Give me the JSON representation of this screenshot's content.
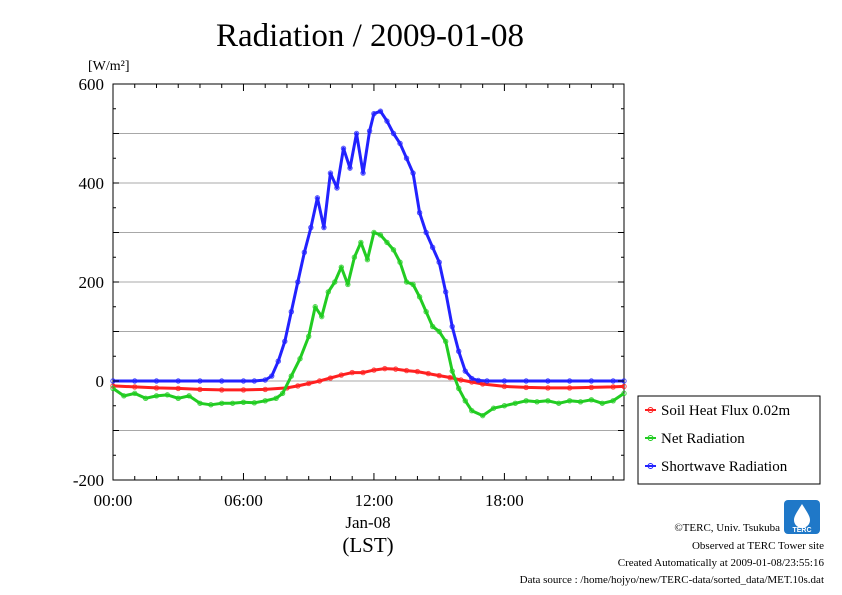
{
  "chart_data": {
    "type": "line",
    "title": "Radiation / 2009-01-08",
    "unit_label": "[W/m²]",
    "xlabel_date": "Jan-08",
    "xlabel_tz": "(LST)",
    "xlim": [
      0,
      23.5
    ],
    "ylim": [
      -200,
      600
    ],
    "yticks": [
      -200,
      0,
      200,
      400,
      600
    ],
    "yticks_labels": [
      "-200",
      "0",
      "200",
      "400",
      "600"
    ],
    "xticks": [
      0,
      6,
      12,
      18
    ],
    "xticks_labels": [
      "00:00",
      "06:00",
      "12:00",
      "18:00"
    ],
    "grid": true,
    "legend_position": "lower-right outside",
    "series": [
      {
        "name": "Soil Heat Flux 0.02m",
        "color": "#ff2020",
        "x": [
          0,
          1,
          2,
          3,
          4,
          5,
          6,
          7,
          8,
          8.5,
          9,
          9.5,
          10,
          10.5,
          11,
          11.5,
          12,
          12.5,
          13,
          13.5,
          14,
          14.5,
          15,
          15.5,
          16,
          16.5,
          17,
          18,
          19,
          20,
          21,
          22,
          23,
          23.5
        ],
        "values": [
          -10,
          -12,
          -14,
          -15,
          -17,
          -18,
          -18,
          -17,
          -14,
          -10,
          -5,
          0,
          6,
          12,
          17,
          17,
          22,
          25,
          24,
          21,
          19,
          15,
          11,
          7,
          2,
          -2,
          -6,
          -11,
          -13,
          -14,
          -14,
          -13,
          -12,
          -11
        ]
      },
      {
        "name": "Net Radiation",
        "color": "#22cc22",
        "x": [
          0,
          0.5,
          1,
          1.5,
          2,
          2.5,
          3,
          3.5,
          4,
          4.5,
          5,
          5.5,
          6,
          6.5,
          7,
          7.5,
          7.8,
          8.2,
          8.6,
          9,
          9.3,
          9.6,
          9.9,
          10.2,
          10.5,
          10.8,
          11.1,
          11.4,
          11.7,
          12,
          12.3,
          12.6,
          12.9,
          13.2,
          13.5,
          13.8,
          14.1,
          14.4,
          14.7,
          15,
          15.3,
          15.6,
          15.9,
          16.2,
          16.5,
          17,
          17.5,
          18,
          18.5,
          19,
          19.5,
          20,
          20.5,
          21,
          21.5,
          22,
          22.5,
          23,
          23.5
        ],
        "values": [
          -15,
          -30,
          -25,
          -35,
          -30,
          -28,
          -35,
          -30,
          -45,
          -48,
          -45,
          -45,
          -43,
          -44,
          -40,
          -35,
          -25,
          10,
          45,
          90,
          150,
          130,
          180,
          200,
          230,
          195,
          250,
          280,
          245,
          300,
          295,
          280,
          265,
          240,
          200,
          195,
          170,
          140,
          110,
          100,
          80,
          20,
          -15,
          -40,
          -60,
          -70,
          -55,
          -50,
          -45,
          -40,
          -42,
          -40,
          -45,
          -40,
          -42,
          -38,
          -45,
          -40,
          -25
        ]
      },
      {
        "name": "Shortwave Radiation",
        "color": "#2222ff",
        "x": [
          0,
          1,
          2,
          3,
          4,
          5,
          6,
          6.5,
          7,
          7.3,
          7.6,
          7.9,
          8.2,
          8.5,
          8.8,
          9.1,
          9.4,
          9.7,
          10,
          10.3,
          10.6,
          10.9,
          11.2,
          11.5,
          11.8,
          12,
          12.3,
          12.6,
          12.9,
          13.2,
          13.5,
          13.8,
          14.1,
          14.4,
          14.7,
          15,
          15.3,
          15.6,
          15.9,
          16.2,
          16.5,
          16.8,
          17.2,
          18,
          19,
          20,
          21,
          22,
          23,
          23.5
        ],
        "values": [
          0,
          0,
          0,
          0,
          0,
          0,
          0,
          0,
          2,
          10,
          40,
          80,
          140,
          200,
          260,
          310,
          370,
          310,
          420,
          390,
          470,
          430,
          500,
          420,
          505,
          540,
          545,
          525,
          500,
          480,
          450,
          420,
          340,
          300,
          270,
          240,
          180,
          110,
          60,
          20,
          5,
          1,
          0,
          0,
          0,
          0,
          0,
          0,
          0,
          0
        ]
      }
    ]
  },
  "footer": {
    "copyright": "©TERC, Univ. Tsukuba",
    "observed": "Observed at TERC Tower site",
    "created": "Created Automatically at 2009-01-08/23:55:16",
    "source": "Data source : /home/hojyo/new/TERC-data/sorted_data/MET.10s.dat",
    "logo_text": "TERC"
  }
}
